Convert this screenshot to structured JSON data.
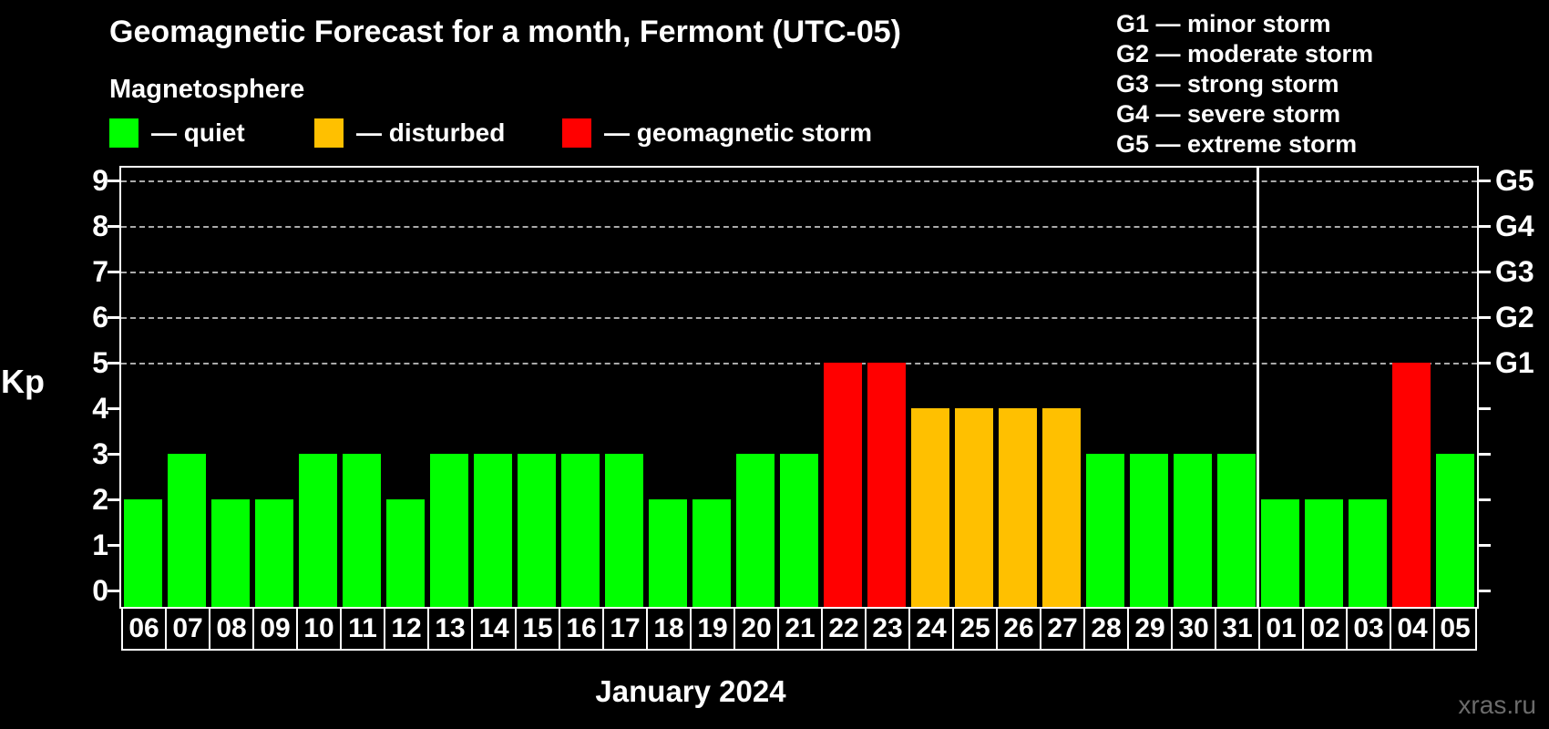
{
  "header": {
    "title": "Geomagnetic Forecast for a month, Fermont (UTC-05)",
    "subtitle": "Magnetosphere",
    "legend": [
      {
        "key": "quiet",
        "label": "— quiet"
      },
      {
        "key": "disturbed",
        "label": "— disturbed"
      },
      {
        "key": "storm",
        "label": "— geomagnetic storm"
      }
    ],
    "g_legend": [
      "G1 — minor storm",
      "G2 — moderate storm",
      "G3 — strong storm",
      "G4 — severe storm",
      "G5 — extreme storm"
    ]
  },
  "footer": {
    "xlabel": "January 2024",
    "watermark": "xras.ru"
  },
  "chart_data": {
    "type": "bar",
    "title": "Geomagnetic Forecast for a month, Fermont (UTC-05)",
    "ylabel": "Kp",
    "xlabel": "January 2024",
    "ylim": [
      0,
      9
    ],
    "y_ticks": [
      0,
      1,
      2,
      3,
      4,
      5,
      6,
      7,
      8,
      9
    ],
    "gridline_levels": [
      5,
      6,
      7,
      8,
      9
    ],
    "grid": "dashed-horizontal",
    "legend_position": "top",
    "right_axis": [
      {
        "label": "G1",
        "kp": 5
      },
      {
        "label": "G2",
        "kp": 6
      },
      {
        "label": "G3",
        "kp": 7
      },
      {
        "label": "G4",
        "kp": 8
      },
      {
        "label": "G5",
        "kp": 9
      }
    ],
    "status_colors": {
      "quiet": "#00ff00",
      "disturbed": "#ffc000",
      "storm": "#ff0000"
    },
    "month_separator_after_index": 25,
    "days": [
      {
        "date": "06",
        "kp": 2,
        "status": "quiet"
      },
      {
        "date": "07",
        "kp": 3,
        "status": "quiet"
      },
      {
        "date": "08",
        "kp": 2,
        "status": "quiet"
      },
      {
        "date": "09",
        "kp": 2,
        "status": "quiet"
      },
      {
        "date": "10",
        "kp": 3,
        "status": "quiet"
      },
      {
        "date": "11",
        "kp": 3,
        "status": "quiet"
      },
      {
        "date": "12",
        "kp": 2,
        "status": "quiet"
      },
      {
        "date": "13",
        "kp": 3,
        "status": "quiet"
      },
      {
        "date": "14",
        "kp": 3,
        "status": "quiet"
      },
      {
        "date": "15",
        "kp": 3,
        "status": "quiet"
      },
      {
        "date": "16",
        "kp": 3,
        "status": "quiet"
      },
      {
        "date": "17",
        "kp": 3,
        "status": "quiet"
      },
      {
        "date": "18",
        "kp": 2,
        "status": "quiet"
      },
      {
        "date": "19",
        "kp": 2,
        "status": "quiet"
      },
      {
        "date": "20",
        "kp": 3,
        "status": "quiet"
      },
      {
        "date": "21",
        "kp": 3,
        "status": "quiet"
      },
      {
        "date": "22",
        "kp": 5,
        "status": "storm"
      },
      {
        "date": "23",
        "kp": 5,
        "status": "storm"
      },
      {
        "date": "24",
        "kp": 4,
        "status": "disturbed"
      },
      {
        "date": "25",
        "kp": 4,
        "status": "disturbed"
      },
      {
        "date": "26",
        "kp": 4,
        "status": "disturbed"
      },
      {
        "date": "27",
        "kp": 4,
        "status": "disturbed"
      },
      {
        "date": "28",
        "kp": 3,
        "status": "quiet"
      },
      {
        "date": "29",
        "kp": 3,
        "status": "quiet"
      },
      {
        "date": "30",
        "kp": 3,
        "status": "quiet"
      },
      {
        "date": "31",
        "kp": 3,
        "status": "quiet"
      },
      {
        "date": "01",
        "kp": 2,
        "status": "quiet"
      },
      {
        "date": "02",
        "kp": 2,
        "status": "quiet"
      },
      {
        "date": "03",
        "kp": 2,
        "status": "quiet"
      },
      {
        "date": "04",
        "kp": 5,
        "status": "storm"
      },
      {
        "date": "05",
        "kp": 3,
        "status": "quiet"
      }
    ]
  }
}
